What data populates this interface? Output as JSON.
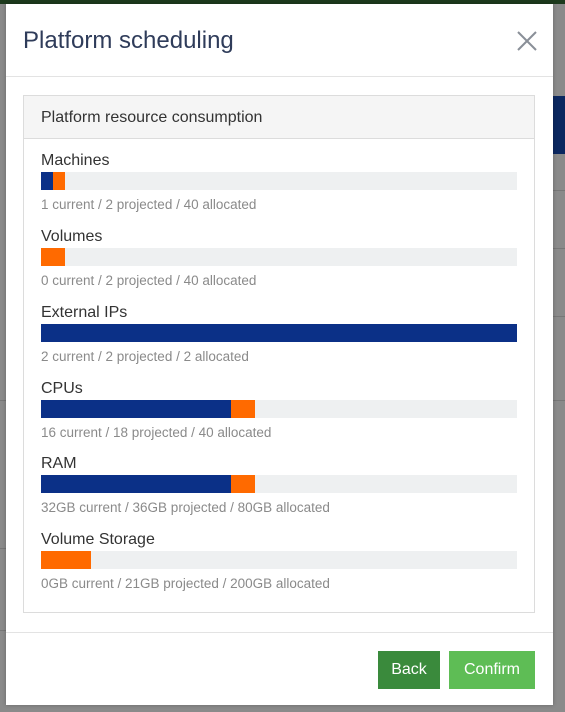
{
  "modal": {
    "title": "Platform scheduling",
    "close_icon": "close-icon"
  },
  "panel": {
    "title": "Platform resource consumption"
  },
  "colors": {
    "current": "#0b3087",
    "projected": "#ff6a00",
    "track": "#eef0f1",
    "back_button": "#3a8a3c",
    "confirm_button": "#5ebd55"
  },
  "resources": [
    {
      "label": "Machines",
      "current": 1,
      "projected": 2,
      "allocated": 40,
      "caption": "1 current / 2 projected / 40 allocated"
    },
    {
      "label": "Volumes",
      "current": 0,
      "projected": 2,
      "allocated": 40,
      "caption": "0 current / 2 projected / 40 allocated"
    },
    {
      "label": "External IPs",
      "current": 2,
      "projected": 2,
      "allocated": 2,
      "caption": "2 current / 2 projected / 2 allocated"
    },
    {
      "label": "CPUs",
      "current": 16,
      "projected": 18,
      "allocated": 40,
      "caption": "16 current / 18 projected / 40 allocated"
    },
    {
      "label": "RAM",
      "current": 32,
      "projected": 36,
      "allocated": 80,
      "caption": "32GB current / 36GB projected / 80GB allocated"
    },
    {
      "label": "Volume Storage",
      "current": 0,
      "projected": 21,
      "allocated": 200,
      "caption": "0GB current / 21GB projected / 200GB allocated"
    }
  ],
  "footer": {
    "back_label": "Back",
    "confirm_label": "Confirm"
  }
}
